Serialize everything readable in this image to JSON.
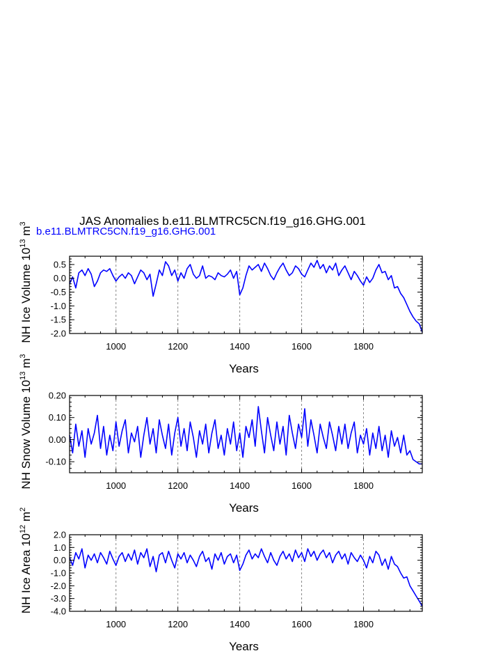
{
  "page": {
    "title": "JAS Anomalies b.e11.BLMTRC5CN.f19_g16.GHG.001",
    "subtitle": "b.e11.BLMTRC5CN.f19_g16.GHG.001"
  },
  "colors": {
    "line": "#0000ff",
    "axis": "#000000",
    "grid": "#888888",
    "subtitle": "#0000ff"
  },
  "chart_data": [
    {
      "type": "line",
      "ylabel": "NH Ice Volume 10",
      "ylabel_exp": "13",
      "ylabel_unit": " m",
      "ylabel_unit_exp": "3",
      "xlabel": "Years",
      "xlim": [
        850,
        1990
      ],
      "ylim": [
        -2.0,
        0.8
      ],
      "xticks": [
        1000,
        1200,
        1400,
        1600,
        1800
      ],
      "xtick_labels": [
        "1000",
        "1200",
        "1400",
        "1600",
        "1800"
      ],
      "yticks": [
        0.5,
        0.0,
        -0.5,
        -1.0,
        -1.5,
        -2.0
      ],
      "ytick_labels": [
        "0.5",
        "0.0",
        "-0.5",
        "-1.0",
        "-1.5",
        "-2.0"
      ],
      "grid_x": [
        1000,
        1200,
        1400,
        1600,
        1800
      ],
      "series": [
        {
          "name": "NH Ice Volume",
          "x": [
            850,
            860,
            870,
            880,
            890,
            900,
            910,
            920,
            930,
            940,
            950,
            960,
            970,
            980,
            990,
            1000,
            1010,
            1020,
            1030,
            1040,
            1050,
            1060,
            1070,
            1080,
            1090,
            1100,
            1110,
            1120,
            1130,
            1140,
            1150,
            1160,
            1170,
            1180,
            1190,
            1200,
            1210,
            1220,
            1230,
            1240,
            1250,
            1260,
            1270,
            1280,
            1290,
            1300,
            1310,
            1320,
            1330,
            1340,
            1350,
            1360,
            1370,
            1380,
            1390,
            1400,
            1410,
            1420,
            1430,
            1440,
            1450,
            1460,
            1470,
            1480,
            1490,
            1500,
            1510,
            1520,
            1530,
            1540,
            1550,
            1560,
            1570,
            1580,
            1590,
            1600,
            1610,
            1620,
            1630,
            1640,
            1650,
            1660,
            1670,
            1680,
            1690,
            1700,
            1710,
            1720,
            1730,
            1740,
            1750,
            1760,
            1770,
            1780,
            1790,
            1800,
            1810,
            1820,
            1830,
            1840,
            1850,
            1860,
            1870,
            1880,
            1890,
            1900,
            1910,
            1920,
            1930,
            1940,
            1950,
            1960,
            1970,
            1980,
            1990
          ],
          "y": [
            -0.2,
            0.05,
            -0.35,
            0.2,
            0.3,
            0.1,
            0.35,
            0.15,
            -0.3,
            -0.1,
            0.2,
            0.3,
            0.25,
            0.35,
            0.1,
            -0.1,
            0.05,
            0.15,
            0.0,
            0.2,
            0.1,
            -0.2,
            0.05,
            0.3,
            0.2,
            -0.05,
            0.15,
            -0.65,
            -0.2,
            0.3,
            0.1,
            0.6,
            0.45,
            0.1,
            0.3,
            -0.1,
            0.2,
            0.0,
            0.35,
            0.5,
            0.15,
            0.0,
            0.1,
            0.45,
            0.0,
            0.1,
            0.05,
            -0.05,
            0.2,
            0.1,
            0.05,
            0.15,
            0.3,
            0.0,
            0.25,
            -0.6,
            -0.35,
            0.1,
            0.45,
            0.3,
            0.4,
            0.5,
            0.25,
            0.55,
            0.35,
            0.1,
            -0.05,
            0.2,
            0.4,
            0.55,
            0.3,
            0.1,
            0.2,
            0.45,
            0.35,
            0.15,
            0.05,
            0.3,
            0.55,
            0.4,
            0.65,
            0.35,
            0.5,
            0.2,
            0.45,
            0.3,
            0.55,
            0.1,
            0.3,
            0.45,
            0.2,
            -0.05,
            0.25,
            0.1,
            -0.1,
            -0.25,
            0.05,
            -0.15,
            0.0,
            0.3,
            0.5,
            0.2,
            0.25,
            -0.05,
            0.1,
            -0.35,
            -0.3,
            -0.55,
            -0.7,
            -0.95,
            -1.2,
            -1.4,
            -1.55,
            -1.65,
            -1.95
          ]
        }
      ]
    },
    {
      "type": "line",
      "ylabel": "NH Snow Volume 10",
      "ylabel_exp": "13",
      "ylabel_unit": " m",
      "ylabel_unit_exp": "3",
      "xlabel": "Years",
      "xlim": [
        850,
        1990
      ],
      "ylim": [
        -0.15,
        0.2
      ],
      "xticks": [
        1000,
        1200,
        1400,
        1600,
        1800
      ],
      "xtick_labels": [
        "1000",
        "1200",
        "1400",
        "1600",
        "1800"
      ],
      "yticks": [
        0.2,
        0.1,
        0.0,
        -0.1
      ],
      "ytick_labels": [
        "0.20",
        "0.10",
        "0.00",
        "-0.10"
      ],
      "grid_x": [
        1000,
        1200,
        1400,
        1600,
        1800
      ],
      "series": [
        {
          "name": "NH Snow Volume",
          "x": [
            850,
            860,
            870,
            880,
            890,
            900,
            910,
            920,
            930,
            940,
            950,
            960,
            970,
            980,
            990,
            1000,
            1010,
            1020,
            1030,
            1040,
            1050,
            1060,
            1070,
            1080,
            1090,
            1100,
            1110,
            1120,
            1130,
            1140,
            1150,
            1160,
            1170,
            1180,
            1190,
            1200,
            1210,
            1220,
            1230,
            1240,
            1250,
            1260,
            1270,
            1280,
            1290,
            1300,
            1310,
            1320,
            1330,
            1340,
            1350,
            1360,
            1370,
            1380,
            1390,
            1400,
            1410,
            1420,
            1430,
            1440,
            1450,
            1460,
            1470,
            1480,
            1490,
            1500,
            1510,
            1520,
            1530,
            1540,
            1550,
            1560,
            1570,
            1580,
            1590,
            1600,
            1610,
            1620,
            1630,
            1640,
            1650,
            1660,
            1670,
            1680,
            1690,
            1700,
            1710,
            1720,
            1730,
            1740,
            1750,
            1760,
            1770,
            1780,
            1790,
            1800,
            1810,
            1820,
            1830,
            1840,
            1850,
            1860,
            1870,
            1880,
            1890,
            1900,
            1910,
            1920,
            1930,
            1940,
            1950,
            1960,
            1970,
            1980,
            1990
          ],
          "y": [
            0.02,
            -0.06,
            0.07,
            -0.03,
            0.04,
            -0.08,
            0.05,
            -0.02,
            0.03,
            0.11,
            -0.04,
            0.06,
            -0.07,
            0.02,
            -0.05,
            0.08,
            -0.03,
            0.04,
            0.09,
            -0.06,
            0.03,
            -0.01,
            0.06,
            -0.08,
            0.02,
            0.1,
            -0.02,
            0.05,
            -0.06,
            0.09,
            0.02,
            -0.04,
            0.07,
            -0.07,
            0.03,
            0.1,
            -0.03,
            0.05,
            -0.05,
            0.08,
            0.01,
            -0.08,
            0.04,
            -0.02,
            0.07,
            -0.06,
            0.03,
            0.09,
            -0.04,
            0.02,
            -0.07,
            0.05,
            -0.02,
            0.08,
            -0.05,
            0.03,
            -0.08,
            0.06,
            0.01,
            0.09,
            -0.03,
            0.15,
            0.04,
            -0.06,
            0.1,
            0.02,
            -0.05,
            0.08,
            -0.02,
            0.06,
            -0.07,
            0.11,
            0.03,
            -0.04,
            0.07,
            0.01,
            0.14,
            -0.03,
            0.09,
            0.02,
            -0.06,
            0.07,
            0.01,
            -0.04,
            0.08,
            0.02,
            -0.05,
            0.06,
            -0.02,
            0.07,
            -0.04,
            0.03,
            0.08,
            -0.06,
            0.02,
            -0.02,
            0.05,
            -0.07,
            0.03,
            -0.04,
            0.06,
            -0.05,
            0.02,
            -0.08,
            0.04,
            -0.03,
            0.01,
            -0.06,
            0.02,
            -0.07,
            -0.05,
            -0.09,
            -0.1,
            -0.11,
            -0.11
          ]
        }
      ]
    },
    {
      "type": "line",
      "ylabel": "NH Ice Area 10",
      "ylabel_exp": "12",
      "ylabel_unit": " m",
      "ylabel_unit_exp": "2",
      "xlabel": "Years",
      "xlim": [
        850,
        1990
      ],
      "ylim": [
        -4.0,
        2.0
      ],
      "xticks": [
        1000,
        1200,
        1400,
        1600,
        1800
      ],
      "xtick_labels": [
        "1000",
        "1200",
        "1400",
        "1600",
        "1800"
      ],
      "yticks": [
        2.0,
        1.0,
        0.0,
        -1.0,
        -2.0,
        -3.0,
        -4.0
      ],
      "ytick_labels": [
        "2.0",
        "1.0",
        "0.0",
        "-1.0",
        "-2.0",
        "-3.0",
        "-4.0"
      ],
      "grid_x": [
        1000,
        1200,
        1400,
        1600,
        1800
      ],
      "series": [
        {
          "name": "NH Ice Area",
          "x": [
            850,
            860,
            870,
            880,
            890,
            900,
            910,
            920,
            930,
            940,
            950,
            960,
            970,
            980,
            990,
            1000,
            1010,
            1020,
            1030,
            1040,
            1050,
            1060,
            1070,
            1080,
            1090,
            1100,
            1110,
            1120,
            1130,
            1140,
            1150,
            1160,
            1170,
            1180,
            1190,
            1200,
            1210,
            1220,
            1230,
            1240,
            1250,
            1260,
            1270,
            1280,
            1290,
            1300,
            1310,
            1320,
            1330,
            1340,
            1350,
            1360,
            1370,
            1380,
            1390,
            1400,
            1410,
            1420,
            1430,
            1440,
            1450,
            1460,
            1470,
            1480,
            1490,
            1500,
            1510,
            1520,
            1530,
            1540,
            1550,
            1560,
            1570,
            1580,
            1590,
            1600,
            1610,
            1620,
            1630,
            1640,
            1650,
            1660,
            1670,
            1680,
            1690,
            1700,
            1710,
            1720,
            1730,
            1740,
            1750,
            1760,
            1770,
            1780,
            1790,
            1800,
            1810,
            1820,
            1830,
            1840,
            1850,
            1860,
            1870,
            1880,
            1890,
            1900,
            1910,
            1920,
            1930,
            1940,
            1950,
            1960,
            1970,
            1980,
            1990
          ],
          "y": [
            0.2,
            -0.4,
            0.6,
            0.1,
            0.9,
            -0.6,
            0.4,
            0.0,
            0.5,
            -0.2,
            0.6,
            0.2,
            -0.3,
            0.7,
            0.1,
            -0.4,
            0.3,
            0.6,
            -0.1,
            0.5,
            0.0,
            0.8,
            -0.3,
            0.6,
            0.2,
            0.9,
            -0.5,
            0.3,
            -0.9,
            0.4,
            0.6,
            -0.2,
            0.7,
            0.0,
            -0.6,
            0.5,
            0.1,
            0.6,
            -0.2,
            0.4,
            0.0,
            -0.5,
            0.3,
            0.7,
            -0.1,
            0.2,
            -0.7,
            0.5,
            0.0,
            0.6,
            -0.3,
            0.3,
            0.5,
            -0.2,
            0.4,
            -0.8,
            -0.3,
            0.4,
            0.8,
            0.1,
            0.5,
            0.2,
            0.9,
            0.3,
            -0.2,
            0.6,
            0.0,
            -0.4,
            0.3,
            0.7,
            0.1,
            0.5,
            -0.1,
            0.8,
            0.2,
            0.6,
            -0.1,
            0.9,
            0.3,
            0.7,
            0.0,
            0.5,
            0.8,
            0.2,
            0.6,
            -0.2,
            0.4,
            0.7,
            0.1,
            0.5,
            -0.3,
            0.6,
            0.2,
            -0.1,
            0.4,
            0.0,
            -0.6,
            0.3,
            -0.2,
            0.7,
            0.4,
            -0.4,
            0.1,
            -0.7,
            0.3,
            -0.3,
            -0.5,
            -1.0,
            -1.4,
            -1.3,
            -2.0,
            -2.4,
            -2.8,
            -3.2,
            -3.6
          ]
        }
      ]
    }
  ]
}
